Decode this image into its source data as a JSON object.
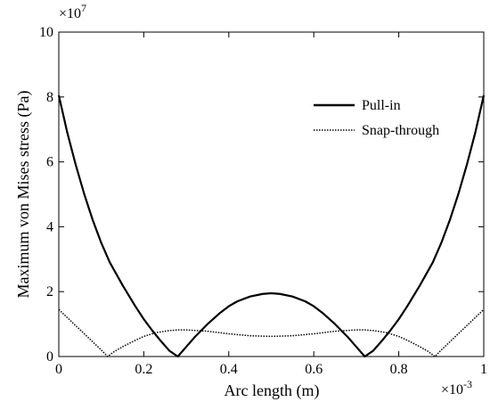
{
  "chart_data": {
    "type": "line",
    "xlabel": "Arc length (m)",
    "ylabel": "Maximum von Mises stress (Pa)",
    "x_multiplier_label": "×10",
    "x_multiplier_exp": "-3",
    "y_multiplier_label": "×10",
    "y_multiplier_exp": "7",
    "xlim": [
      0,
      1
    ],
    "ylim": [
      0,
      10
    ],
    "x_ticks": [
      0,
      0.2,
      0.4,
      0.6,
      0.8,
      1
    ],
    "x_tick_labels": [
      "0",
      "0.2",
      "0.4",
      "0.6",
      "0.8",
      "1"
    ],
    "y_ticks": [
      0,
      2,
      4,
      6,
      8,
      10
    ],
    "y_tick_labels": [
      "0",
      "2",
      "4",
      "6",
      "8",
      "10"
    ],
    "legend_position": "upper-right",
    "series": [
      {
        "name": "Pull-in",
        "style": "solid",
        "x": [
          0,
          0.02,
          0.04,
          0.06,
          0.08,
          0.1,
          0.12,
          0.15,
          0.18,
          0.2,
          0.22,
          0.24,
          0.26,
          0.28,
          0.3,
          0.32,
          0.35,
          0.38,
          0.4,
          0.42,
          0.45,
          0.48,
          0.5,
          0.52,
          0.55,
          0.58,
          0.6,
          0.62,
          0.65,
          0.68,
          0.7,
          0.72,
          0.74,
          0.76,
          0.78,
          0.8,
          0.82,
          0.85,
          0.88,
          0.9,
          0.92,
          0.94,
          0.96,
          0.98,
          1
        ],
        "y": [
          8.05,
          6.9,
          5.9,
          5.0,
          4.2,
          3.5,
          2.9,
          2.2,
          1.55,
          1.15,
          0.8,
          0.48,
          0.18,
          0,
          0.3,
          0.6,
          1.0,
          1.35,
          1.55,
          1.7,
          1.85,
          1.93,
          1.95,
          1.93,
          1.85,
          1.7,
          1.55,
          1.35,
          1.0,
          0.6,
          0.3,
          0,
          0.18,
          0.48,
          0.8,
          1.15,
          1.55,
          2.2,
          2.9,
          3.5,
          4.2,
          5.0,
          5.9,
          6.9,
          8.05
        ]
      },
      {
        "name": "Snap-through",
        "style": "dotted",
        "x": [
          0,
          0.02,
          0.04,
          0.06,
          0.08,
          0.1,
          0.115,
          0.13,
          0.15,
          0.18,
          0.2,
          0.23,
          0.26,
          0.28,
          0.3,
          0.35,
          0.4,
          0.45,
          0.5,
          0.55,
          0.6,
          0.65,
          0.7,
          0.72,
          0.74,
          0.77,
          0.8,
          0.82,
          0.85,
          0.87,
          0.885,
          0.9,
          0.92,
          0.94,
          0.96,
          0.98,
          1
        ],
        "y": [
          1.45,
          1.2,
          0.95,
          0.7,
          0.45,
          0.2,
          0.0,
          0.15,
          0.3,
          0.5,
          0.62,
          0.74,
          0.8,
          0.82,
          0.82,
          0.78,
          0.7,
          0.64,
          0.62,
          0.64,
          0.7,
          0.78,
          0.82,
          0.82,
          0.8,
          0.74,
          0.62,
          0.5,
          0.3,
          0.15,
          0.0,
          0.2,
          0.45,
          0.7,
          0.95,
          1.2,
          1.45
        ]
      }
    ]
  }
}
